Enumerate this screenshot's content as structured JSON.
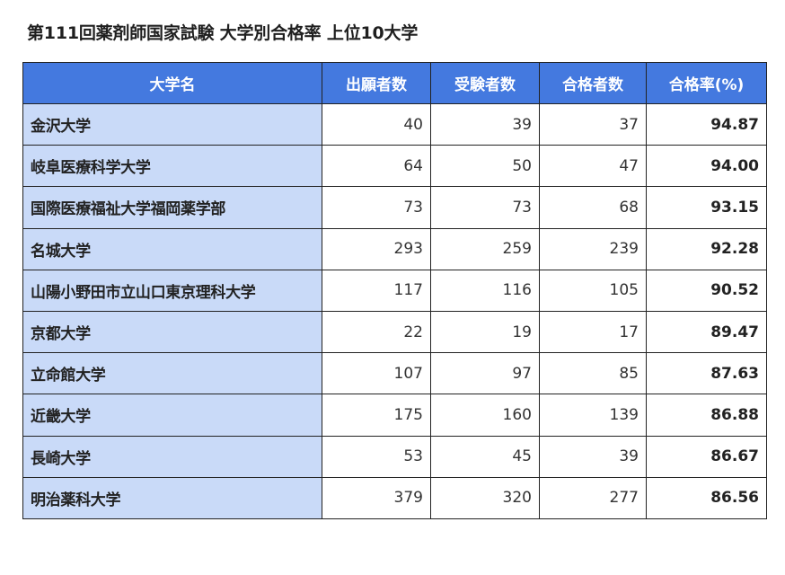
{
  "title": "第111回薬剤師国家試験 大学別合格率 上位10大学",
  "colors": {
    "header_bg": "#4479df",
    "name_cell_bg": "#c9daf8",
    "border": "#222222"
  },
  "table": {
    "headers": [
      "大学名",
      "出願者数",
      "受験者数",
      "合格者数",
      "合格率(%)"
    ],
    "rows": [
      {
        "name": "金沢大学",
        "applicants": "40",
        "examinees": "39",
        "passed": "37",
        "rate": "94.87"
      },
      {
        "name": "岐阜医療科学大学",
        "applicants": "64",
        "examinees": "50",
        "passed": "47",
        "rate": "94.00"
      },
      {
        "name": "国際医療福祉大学福岡薬学部",
        "applicants": "73",
        "examinees": "73",
        "passed": "68",
        "rate": "93.15"
      },
      {
        "name": "名城大学",
        "applicants": "293",
        "examinees": "259",
        "passed": "239",
        "rate": "92.28"
      },
      {
        "name": "山陽小野田市立山口東京理科大学",
        "applicants": "117",
        "examinees": "116",
        "passed": "105",
        "rate": "90.52"
      },
      {
        "name": "京都大学",
        "applicants": "22",
        "examinees": "19",
        "passed": "17",
        "rate": "89.47"
      },
      {
        "name": "立命館大学",
        "applicants": "107",
        "examinees": "97",
        "passed": "85",
        "rate": "87.63"
      },
      {
        "name": "近畿大学",
        "applicants": "175",
        "examinees": "160",
        "passed": "139",
        "rate": "86.88"
      },
      {
        "name": "長崎大学",
        "applicants": "53",
        "examinees": "45",
        "passed": "39",
        "rate": "86.67"
      },
      {
        "name": "明治薬科大学",
        "applicants": "379",
        "examinees": "320",
        "passed": "277",
        "rate": "86.56"
      }
    ]
  }
}
